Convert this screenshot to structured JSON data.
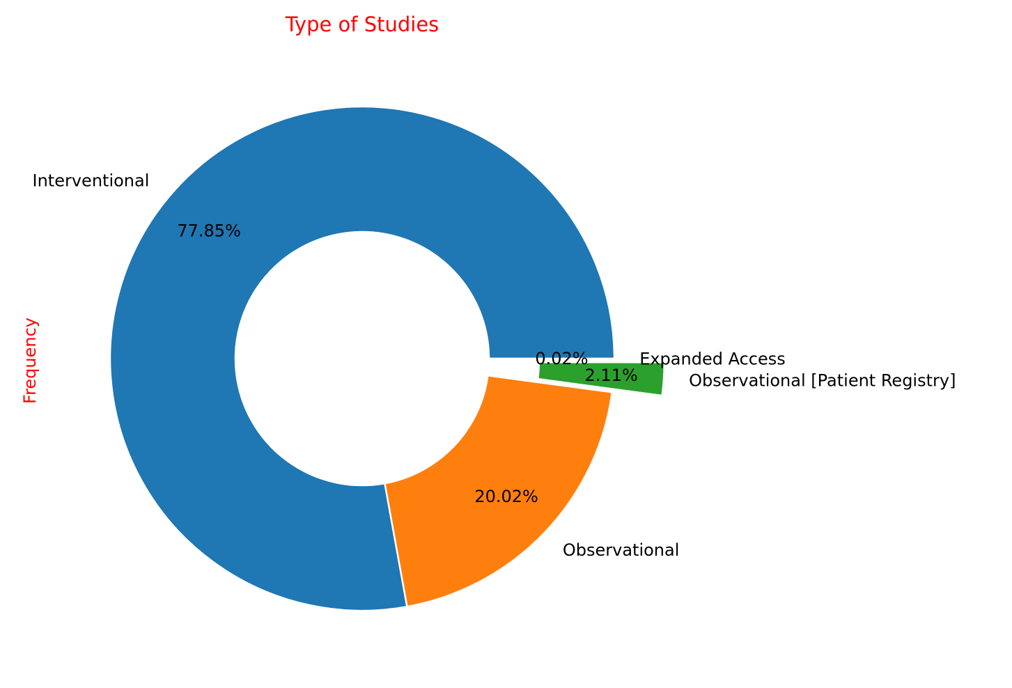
{
  "chart_data": {
    "type": "pie",
    "title": "Type of Studies",
    "ylabel": "Frequency",
    "label_color": "#ff0000",
    "donut": true,
    "start_angle_deg": 0,
    "direction": "counterclockwise",
    "slices": [
      {
        "label": "Interventional",
        "percent": 77.85,
        "percent_label": "77.85%",
        "color": "#1f77b4",
        "exploded": false
      },
      {
        "label": "Observational",
        "percent": 20.02,
        "percent_label": "20.02%",
        "color": "#ff7f0e",
        "exploded": false
      },
      {
        "label": "Observational [Patient Registry]",
        "percent": 2.11,
        "percent_label": "2.11%",
        "color": "#2ca02c",
        "exploded": true
      },
      {
        "label": "Expanded Access",
        "percent": 0.02,
        "percent_label": "0.02%",
        "color": "#d62728",
        "exploded": false
      }
    ]
  }
}
